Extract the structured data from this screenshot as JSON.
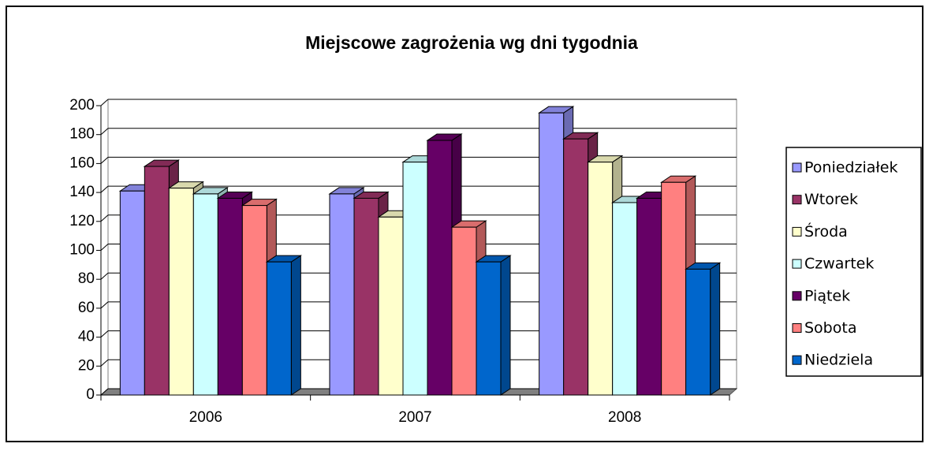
{
  "chart_data": {
    "type": "bar3d",
    "title": "Miejscowe zagrożenia wg dni tygodnia",
    "categories": [
      "2006",
      "2007",
      "2008"
    ],
    "series": [
      {
        "name": "Poniedziałek",
        "color": "#9999ff",
        "values": [
          141,
          139,
          195
        ]
      },
      {
        "name": "Wtorek",
        "color": "#993366",
        "values": [
          158,
          136,
          177
        ]
      },
      {
        "name": "Środa",
        "color": "#ffffcc",
        "values": [
          143,
          123,
          161
        ]
      },
      {
        "name": "Czwartek",
        "color": "#ccffff",
        "values": [
          139,
          161,
          133
        ]
      },
      {
        "name": "Piątek",
        "color": "#660066",
        "values": [
          136,
          176,
          136
        ]
      },
      {
        "name": "Sobota",
        "color": "#ff8080",
        "values": [
          131,
          116,
          147
        ]
      },
      {
        "name": "Niedziela",
        "color": "#0066cc",
        "values": [
          92,
          92,
          87
        ]
      }
    ],
    "ylim": [
      0,
      200
    ],
    "yticks": [
      0,
      20,
      40,
      60,
      80,
      100,
      120,
      140,
      160,
      180,
      200
    ],
    "grid": true,
    "legend": "right"
  }
}
